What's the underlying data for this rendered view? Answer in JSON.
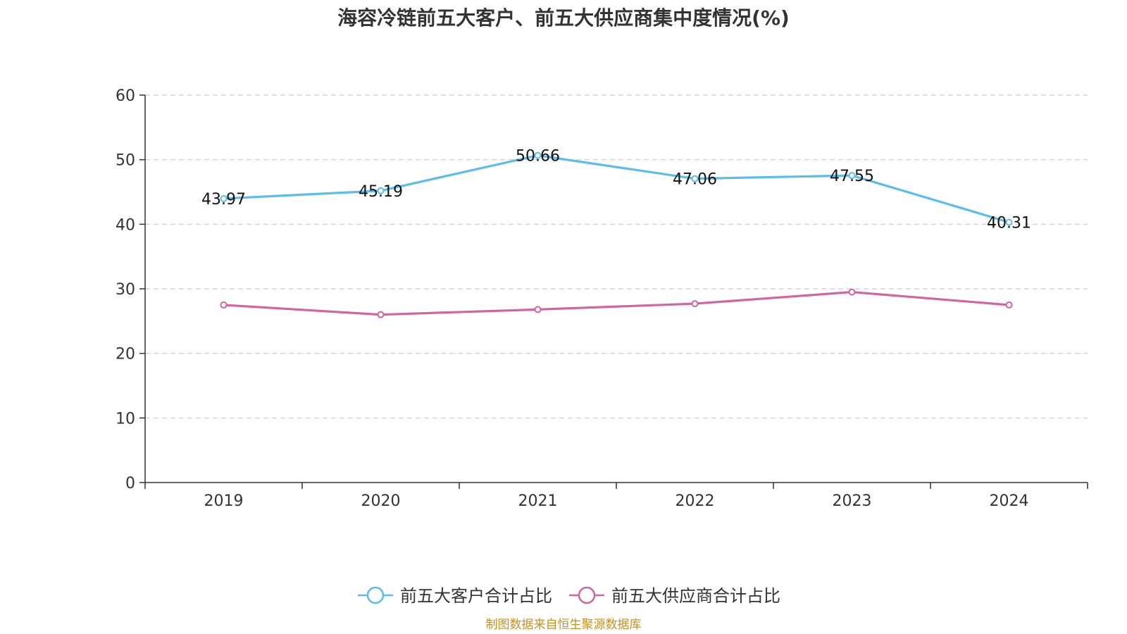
{
  "chart_data": {
    "type": "line",
    "title": "海容冷链前五大客户、前五大供应商集中度情况(%)",
    "categories": [
      "2019",
      "2020",
      "2021",
      "2022",
      "2023",
      "2024"
    ],
    "ylim": [
      0,
      60
    ],
    "yticks": [
      0,
      10,
      20,
      30,
      40,
      50,
      60
    ],
    "grid": true,
    "legend_position": "bottom",
    "series": [
      {
        "name": "前五大客户合计占比",
        "values": [
          43.97,
          45.19,
          50.66,
          47.06,
          47.55,
          40.31
        ],
        "labels": [
          "43.97",
          "45.19",
          "50.66",
          "47.06",
          "47.55",
          "40.31"
        ],
        "color": "#5bbcef"
      },
      {
        "name": "前五大供应商合计占比",
        "values": [
          27.5,
          26.0,
          26.8,
          27.7,
          29.5,
          27.5
        ],
        "color": "#d4649f"
      }
    ]
  },
  "source": "制图数据来自恒生聚源数据库"
}
